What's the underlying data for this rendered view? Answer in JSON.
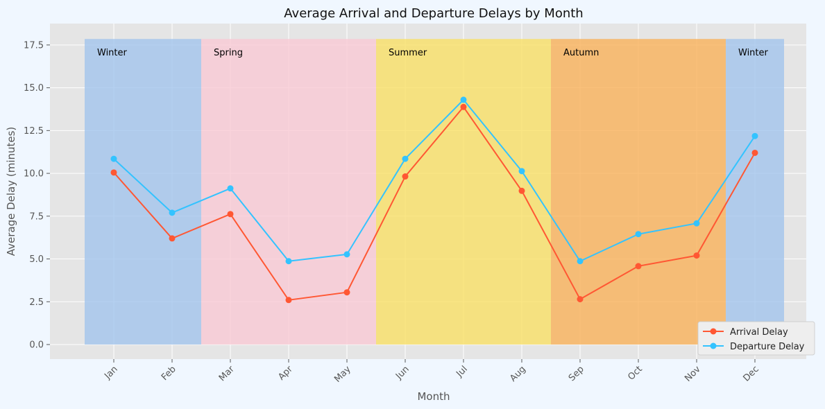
{
  "chart_data": {
    "type": "line",
    "title": "Average Arrival and Departure Delays by Month",
    "xlabel": "Month",
    "ylabel": "Average Delay (minutes)",
    "categories": [
      "Jan",
      "Feb",
      "Mar",
      "Apr",
      "May",
      "Jun",
      "Jul",
      "Aug",
      "Sep",
      "Oct",
      "Nov",
      "Dec"
    ],
    "ylim": [
      -0.85,
      18.75
    ],
    "yticks": [
      "0.0",
      "2.5",
      "5.0",
      "7.5",
      "10.0",
      "12.5",
      "15.0",
      "17.5"
    ],
    "grid": true,
    "legend_position": "bottom-right",
    "series": [
      {
        "name": "Arrival Delay",
        "color": "#ff5733",
        "values": [
          10.05,
          6.2,
          7.62,
          2.6,
          3.05,
          9.82,
          13.88,
          8.98,
          2.65,
          4.58,
          5.2,
          11.2
        ]
      },
      {
        "name": "Departure Delay",
        "color": "#33c3ff",
        "values": [
          10.85,
          7.7,
          9.12,
          4.87,
          5.27,
          10.85,
          14.3,
          10.13,
          4.87,
          6.45,
          7.08,
          12.18
        ]
      }
    ],
    "seasons": [
      {
        "label": "Winter",
        "months": [
          0,
          1
        ],
        "color": "#a3c4ec"
      },
      {
        "label": "Spring",
        "months": [
          2,
          3,
          4
        ],
        "color": "#f9c9d4"
      },
      {
        "label": "Summer",
        "months": [
          5,
          6,
          7
        ],
        "color": "#f9e066"
      },
      {
        "label": "Autumn",
        "months": [
          8,
          9,
          10
        ],
        "color": "#f9b25a"
      },
      {
        "label": "Winter",
        "months": [
          11
        ],
        "color": "#a3c4ec"
      }
    ],
    "season_band_max": 17.85,
    "colors": {
      "plot_bg": "#e5e5e5",
      "grid": "#ffffff",
      "page_bg": "#f0f7ff"
    }
  }
}
